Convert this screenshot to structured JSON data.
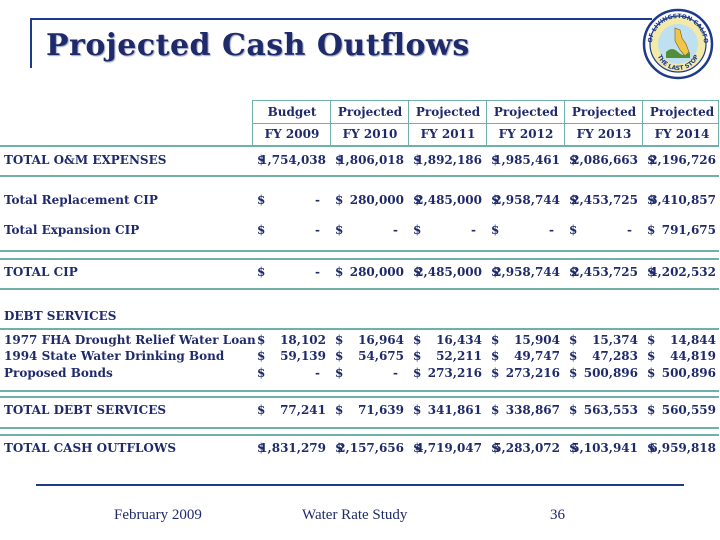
{
  "slide": {
    "title": "Projected Cash Outflows",
    "footer_date": "February 2009",
    "footer_title": "Water Rate Study",
    "page_number": "36"
  },
  "logo": {
    "text_top": "CITY OF LIVINGSTON CALIFORNIA",
    "text_bottom": "THE LAST STOP"
  },
  "table": {
    "header_top": [
      "Budget",
      "Projected",
      "Projected",
      "Projected",
      "Projected",
      "Projected"
    ],
    "header_bottom": [
      "FY 2009",
      "FY 2010",
      "FY 2011",
      "FY 2012",
      "FY 2013",
      "FY 2014"
    ],
    "rows": [
      {
        "label": "TOTAL O&M EXPENSES",
        "cells": [
          [
            "$",
            "1,754,038"
          ],
          [
            "$",
            "1,806,018"
          ],
          [
            "$",
            "1,892,186"
          ],
          [
            "$",
            "1,985,461"
          ],
          [
            "$",
            "2,086,663"
          ],
          [
            "$",
            "2,196,726"
          ]
        ]
      },
      {
        "label": "Total Replacement CIP",
        "cells": [
          [
            "$",
            "-"
          ],
          [
            "$",
            "280,000"
          ],
          [
            "$",
            "2,485,000"
          ],
          [
            "$",
            "2,958,744"
          ],
          [
            "$",
            "2,453,725"
          ],
          [
            "$",
            "3,410,857"
          ]
        ]
      },
      {
        "label": "Total Expansion CIP",
        "cells": [
          [
            "$",
            "-"
          ],
          [
            "$",
            "-"
          ],
          [
            "$",
            "-"
          ],
          [
            "$",
            "-"
          ],
          [
            "$",
            "-"
          ],
          [
            "$",
            "791,675"
          ]
        ]
      },
      {
        "label": "TOTAL CIP",
        "cells": [
          [
            "$",
            "-"
          ],
          [
            "$",
            "280,000"
          ],
          [
            "$",
            "2,485,000"
          ],
          [
            "$",
            "2,958,744"
          ],
          [
            "$",
            "2,453,725"
          ],
          [
            "$",
            "4,202,532"
          ]
        ]
      },
      {
        "label": "DEBT SERVICES",
        "cells": []
      },
      {
        "label": "1977 FHA Drought Relief Water Loan",
        "cells": [
          [
            "$",
            "18,102"
          ],
          [
            "$",
            "16,964"
          ],
          [
            "$",
            "16,434"
          ],
          [
            "$",
            "15,904"
          ],
          [
            "$",
            "15,374"
          ],
          [
            "$",
            "14,844"
          ]
        ]
      },
      {
        "label": "1994 State Water Drinking Bond",
        "cells": [
          [
            "$",
            "59,139"
          ],
          [
            "$",
            "54,675"
          ],
          [
            "$",
            "52,211"
          ],
          [
            "$",
            "49,747"
          ],
          [
            "$",
            "47,283"
          ],
          [
            "$",
            "44,819"
          ]
        ]
      },
      {
        "label": "Proposed Bonds",
        "cells": [
          [
            "$",
            "-"
          ],
          [
            "$",
            "-"
          ],
          [
            "$",
            "273,216"
          ],
          [
            "$",
            "273,216"
          ],
          [
            "$",
            "500,896"
          ],
          [
            "$",
            "500,896"
          ]
        ]
      },
      {
        "label": "TOTAL DEBT SERVICES",
        "cells": [
          [
            "$",
            "77,241"
          ],
          [
            "$",
            "71,639"
          ],
          [
            "$",
            "341,861"
          ],
          [
            "$",
            "338,867"
          ],
          [
            "$",
            "563,553"
          ],
          [
            "$",
            "560,559"
          ]
        ]
      },
      {
        "label": "TOTAL CASH OUTFLOWS",
        "cells": [
          [
            "$",
            "1,831,279"
          ],
          [
            "$",
            "2,157,656"
          ],
          [
            "$",
            "4,719,047"
          ],
          [
            "$",
            "5,283,072"
          ],
          [
            "$",
            "5,103,941"
          ],
          [
            "$",
            "6,959,818"
          ]
        ]
      }
    ]
  }
}
